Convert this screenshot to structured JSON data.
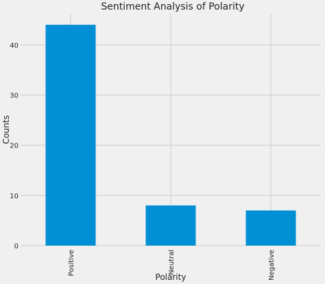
{
  "chart_data": {
    "type": "bar",
    "title": "Sentiment Analysis of Polarity",
    "xlabel": "Polarity",
    "ylabel": "Counts",
    "categories": [
      "Positive",
      "Neutral",
      "Negative"
    ],
    "values": [
      44,
      8,
      7
    ],
    "ylim": [
      0,
      46.2
    ],
    "yticks": [
      0,
      10,
      20,
      30,
      40
    ],
    "grid": true,
    "legend": "none"
  },
  "colors": {
    "background": "#f0f0f0",
    "bar": "#008fd5",
    "grid": "#cbcbcb",
    "text": "#222222"
  }
}
